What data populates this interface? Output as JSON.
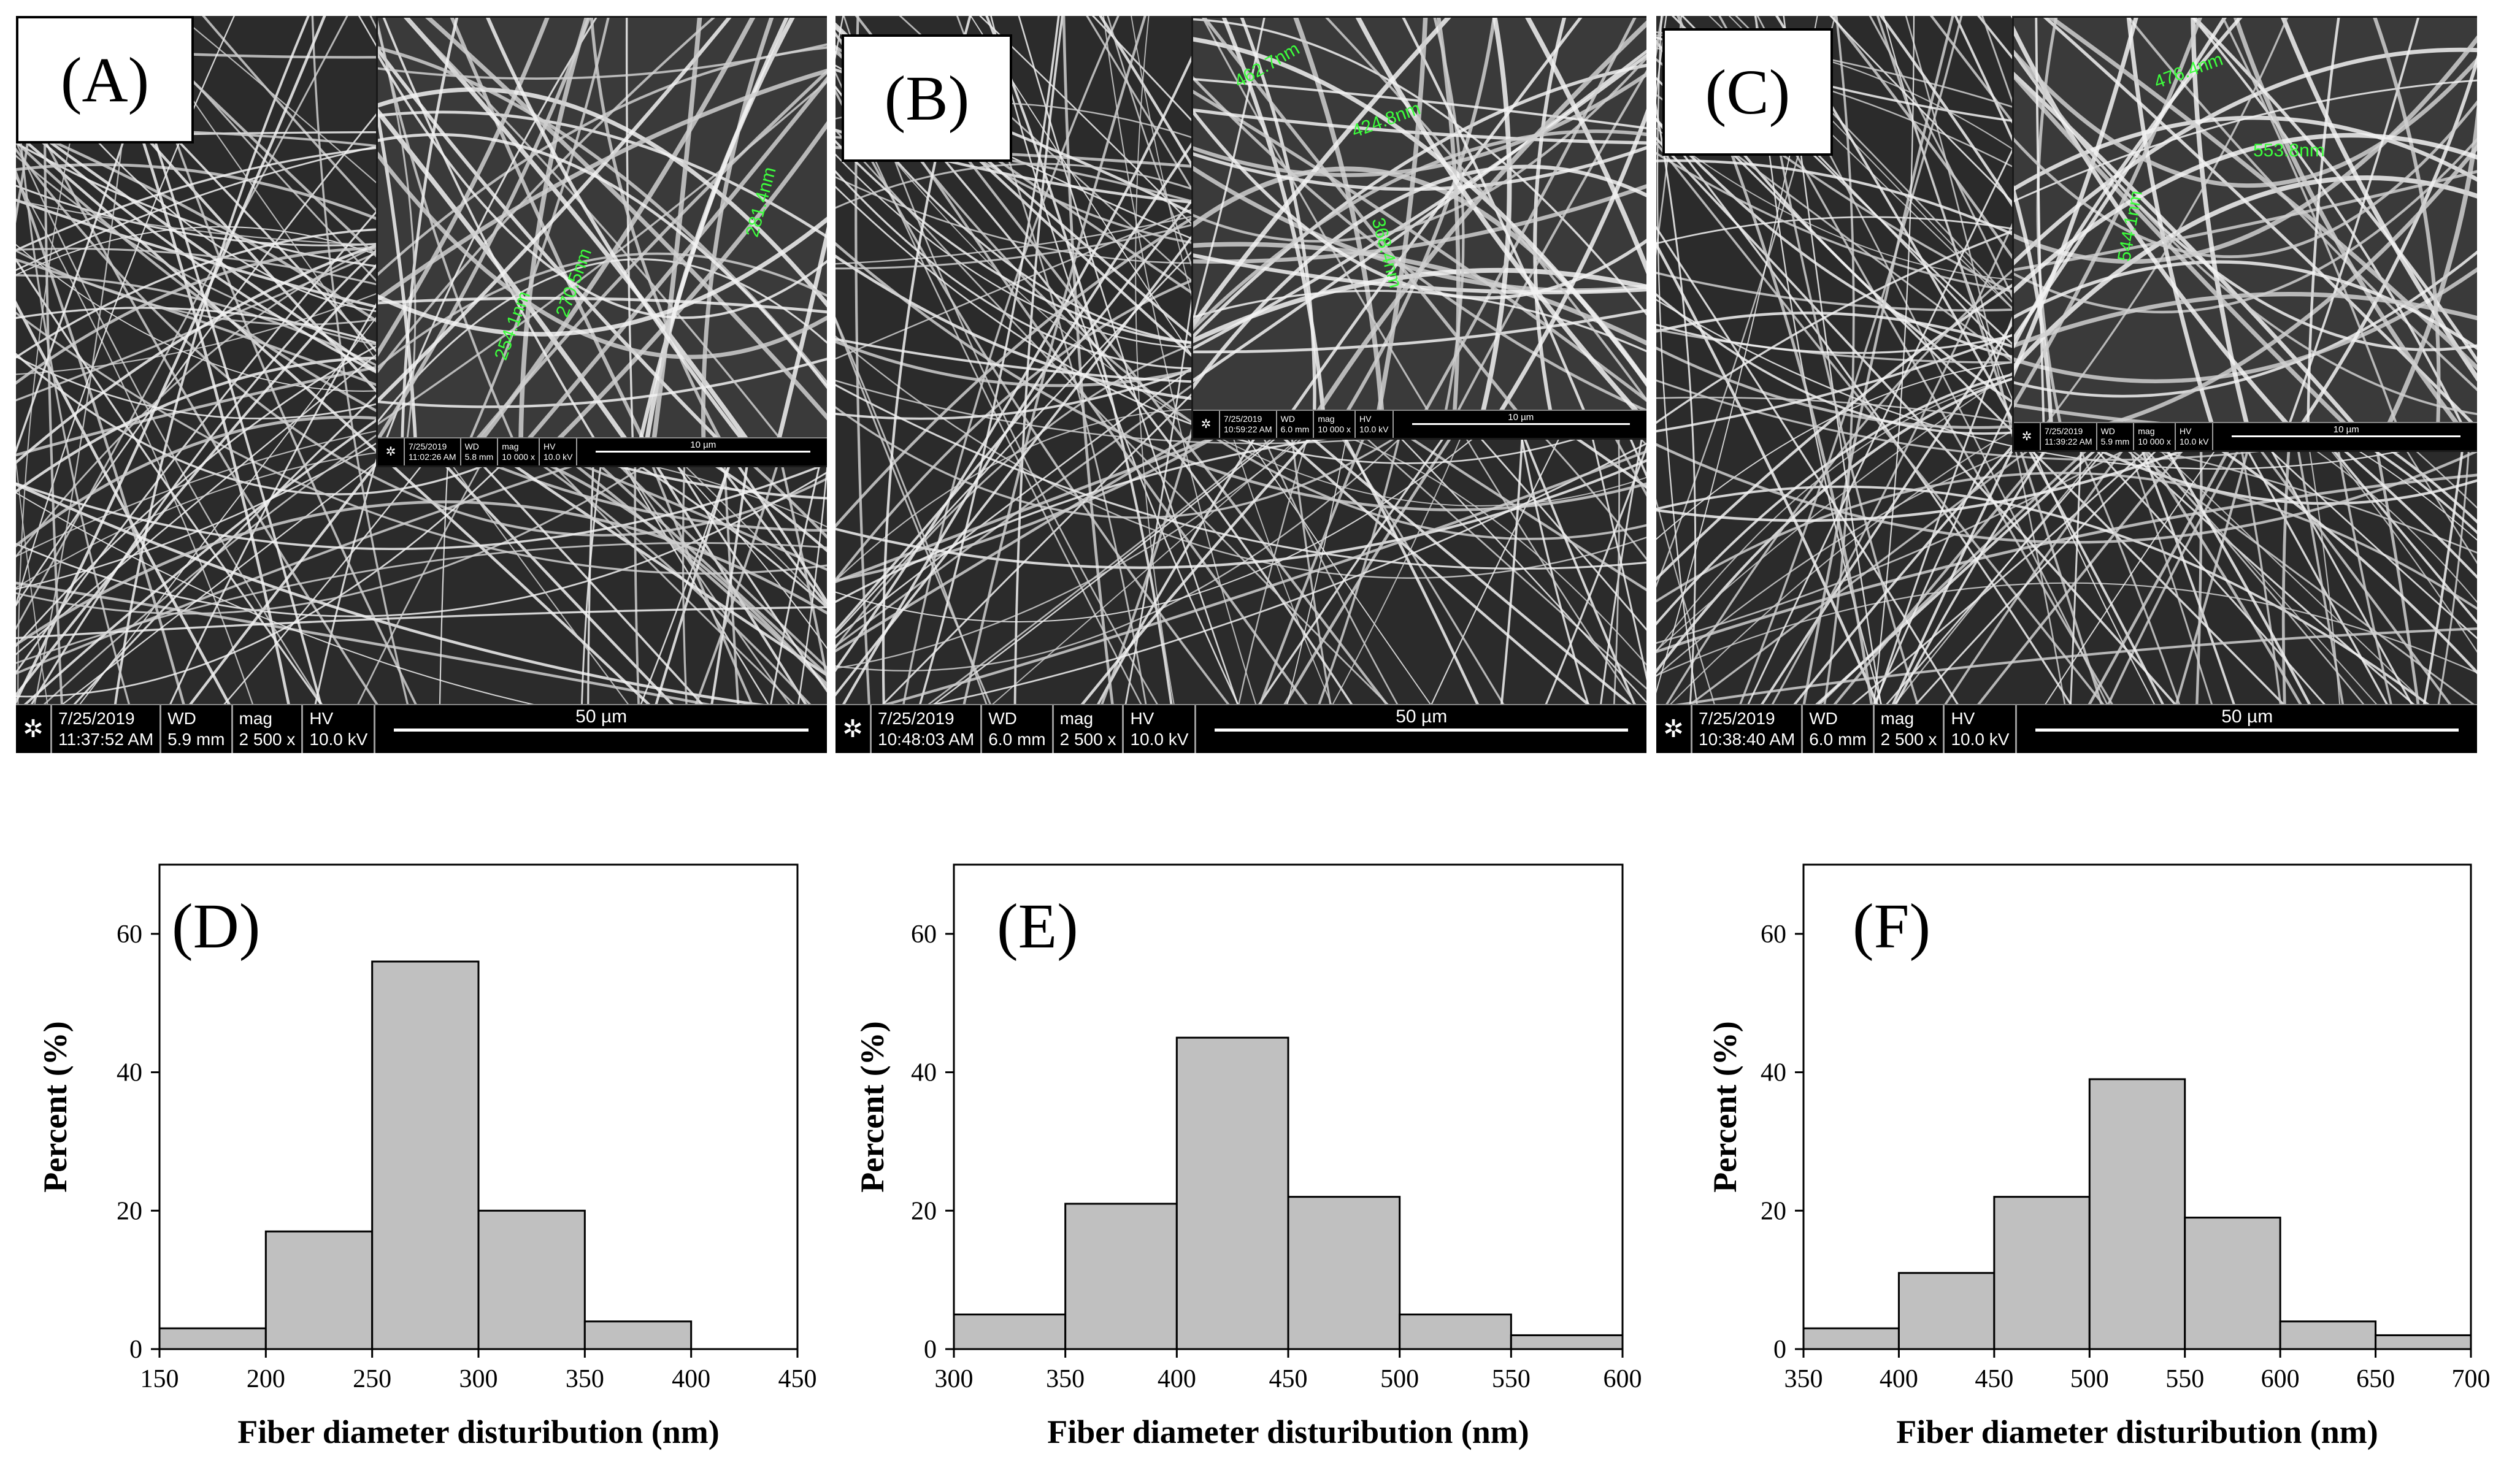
{
  "sem_panels": [
    {
      "label": "(A)",
      "bar": {
        "date": "7/25/2019",
        "time": "11:37:52 AM",
        "wd_label": "WD",
        "wd": "5.9 mm",
        "mag_label": "mag",
        "mag": "2 500 x",
        "hv_label": "HV",
        "hv": "10.0 kV",
        "scale": "50 µm"
      },
      "inset_bar": {
        "date": "7/25/2019",
        "time": "11:02:26 AM",
        "wd_label": "WD",
        "wd": "5.8 mm",
        "mag_label": "mag",
        "mag": "10 000 x",
        "hv_label": "HV",
        "hv": "10.0 kV",
        "scale": "10 µm"
      },
      "annotations": [
        "254.1nm",
        "270.5nm",
        "281.4nm"
      ]
    },
    {
      "label": "(B)",
      "bar": {
        "date": "7/25/2019",
        "time": "10:48:03 AM",
        "wd_label": "WD",
        "wd": "6.0 mm",
        "mag_label": "mag",
        "mag": "2 500 x",
        "hv_label": "HV",
        "hv": "10.0 kV",
        "scale": "50 µm"
      },
      "inset_bar": {
        "date": "7/25/2019",
        "time": "10:59:22 AM",
        "wd_label": "WD",
        "wd": "6.0 mm",
        "mag_label": "mag",
        "mag": "10 000 x",
        "hv_label": "HV",
        "hv": "10.0 kV",
        "scale": "10 µm"
      },
      "annotations": [
        "462.7nm",
        "424.8nm",
        "368.4nm"
      ]
    },
    {
      "label": "(C)",
      "bar": {
        "date": "7/25/2019",
        "time": "10:38:40 AM",
        "wd_label": "WD",
        "wd": "6.0 mm",
        "mag_label": "mag",
        "mag": "2 500 x",
        "hv_label": "HV",
        "hv": "10.0 kV",
        "scale": "50 µm"
      },
      "inset_bar": {
        "date": "7/25/2019",
        "time": "11:39:22 AM",
        "wd_label": "WD",
        "wd": "5.9 mm",
        "mag_label": "mag",
        "mag": "10 000 x",
        "hv_label": "HV",
        "hv": "10.0 kV",
        "scale": "10 µm"
      },
      "annotations": [
        "476.4nm",
        "553.8nm",
        "544.1nm"
      ]
    }
  ],
  "chart_data": [
    {
      "type": "bar",
      "panel_label": "(D)",
      "xlabel": "Fiber diameter disturibution (nm)",
      "ylabel": "Percent (%)",
      "xlim": [
        150,
        450
      ],
      "ylim": [
        0,
        70
      ],
      "xticks": [
        150,
        200,
        250,
        300,
        350,
        400,
        450
      ],
      "yticks": [
        0,
        20,
        40,
        60
      ],
      "bins": [
        [
          150,
          200
        ],
        [
          200,
          250
        ],
        [
          250,
          300
        ],
        [
          300,
          350
        ],
        [
          350,
          400
        ]
      ],
      "values": [
        3,
        17,
        56,
        20,
        4
      ],
      "bar_color": "#c0c0c0",
      "grid": false
    },
    {
      "type": "bar",
      "panel_label": "(E)",
      "xlabel": "Fiber diameter disturibution (nm)",
      "ylabel": "Percent (%)",
      "xlim": [
        300,
        600
      ],
      "ylim": [
        0,
        70
      ],
      "xticks": [
        300,
        350,
        400,
        450,
        500,
        550,
        600
      ],
      "yticks": [
        0,
        20,
        40,
        60
      ],
      "bins": [
        [
          300,
          350
        ],
        [
          350,
          400
        ],
        [
          400,
          450
        ],
        [
          450,
          500
        ],
        [
          500,
          550
        ],
        [
          550,
          600
        ]
      ],
      "values": [
        5,
        21,
        45,
        22,
        5,
        2
      ],
      "bar_color": "#c0c0c0",
      "grid": false
    },
    {
      "type": "bar",
      "panel_label": "(F)",
      "xlabel": "Fiber diameter disturibution (nm)",
      "ylabel": "Percent (%)",
      "xlim": [
        350,
        700
      ],
      "ylim": [
        0,
        70
      ],
      "xticks": [
        350,
        400,
        450,
        500,
        550,
        600,
        650,
        700
      ],
      "yticks": [
        0,
        20,
        40,
        60
      ],
      "bins": [
        [
          350,
          400
        ],
        [
          400,
          450
        ],
        [
          450,
          500
        ],
        [
          500,
          550
        ],
        [
          550,
          600
        ],
        [
          600,
          650
        ],
        [
          650,
          700
        ]
      ],
      "values": [
        3,
        11,
        22,
        39,
        19,
        4,
        2
      ],
      "bar_color": "#c0c0c0",
      "grid": false
    }
  ]
}
